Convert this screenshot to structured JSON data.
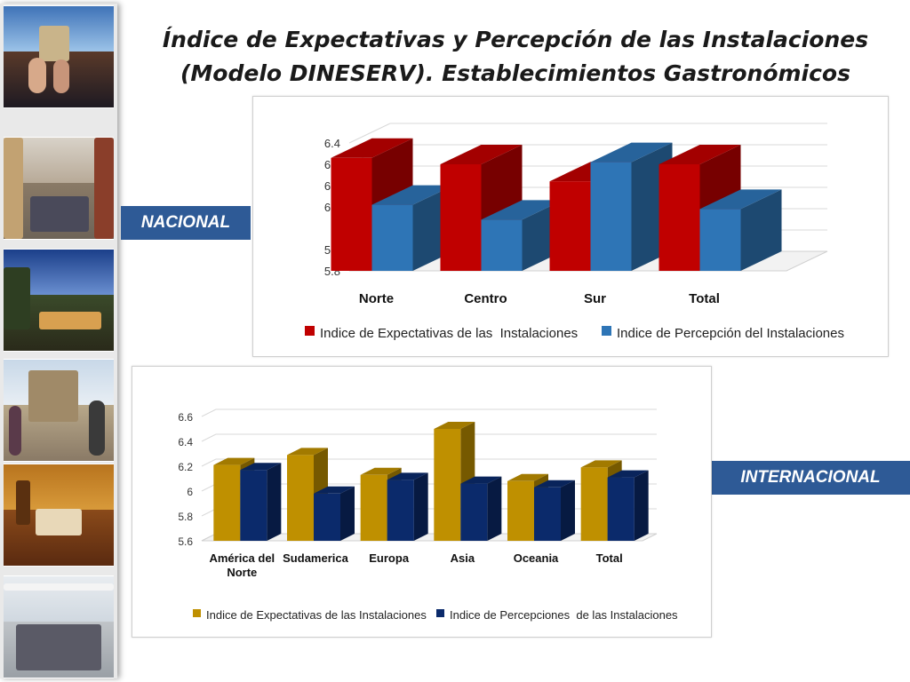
{
  "title_line1": "Índice de Expectativas y Percepción de las Instalaciones",
  "title_line2": "(Modelo DINESERV). Establecimientos Gastronómicos",
  "labels": {
    "nacional": "NACIONAL",
    "internacional": "INTERNACIONAL"
  },
  "colors": {
    "red": "#c00000",
    "blue": "#2e75b6",
    "gold": "#bf9000",
    "navy": "#0b2a6b",
    "tag": "#2e5a96"
  },
  "chart_data": [
    {
      "type": "bar",
      "categories": [
        "Norte",
        "Centro",
        "Sur",
        "Total"
      ],
      "series": [
        {
          "name": "Indice de Expectativas de las  Instalaciones",
          "values": [
            6.33,
            6.3,
            6.22,
            6.3
          ]
        },
        {
          "name": "Indice de Percepción del Instalaciones",
          "values": [
            6.11,
            6.04,
            6.31,
            6.09
          ]
        }
      ],
      "yticks": [
        "6.4",
        "6.3",
        "6.2",
        "6.1",
        "6",
        "5.9",
        "5.8"
      ],
      "ylim": [
        5.8,
        6.4
      ],
      "legend": "bottom",
      "grid": true
    },
    {
      "type": "bar",
      "categories": [
        "América del Norte",
        "Sudamerica",
        "Europa",
        "Asia",
        "Oceania",
        "Total"
      ],
      "series": [
        {
          "name": "Indice de Expectativas de las Instalaciones",
          "values": [
            6.21,
            6.29,
            6.13,
            6.5,
            6.08,
            6.19
          ]
        },
        {
          "name": "Indice de Percepciones  de las Instalaciones",
          "values": [
            6.17,
            5.98,
            6.09,
            6.06,
            6.03,
            6.11
          ]
        }
      ],
      "yticks": [
        "6.6",
        "6.4",
        "6.2",
        "6",
        "5.8",
        "5.6"
      ],
      "ylim": [
        5.6,
        6.6
      ],
      "legend": "bottom",
      "grid": true
    }
  ]
}
